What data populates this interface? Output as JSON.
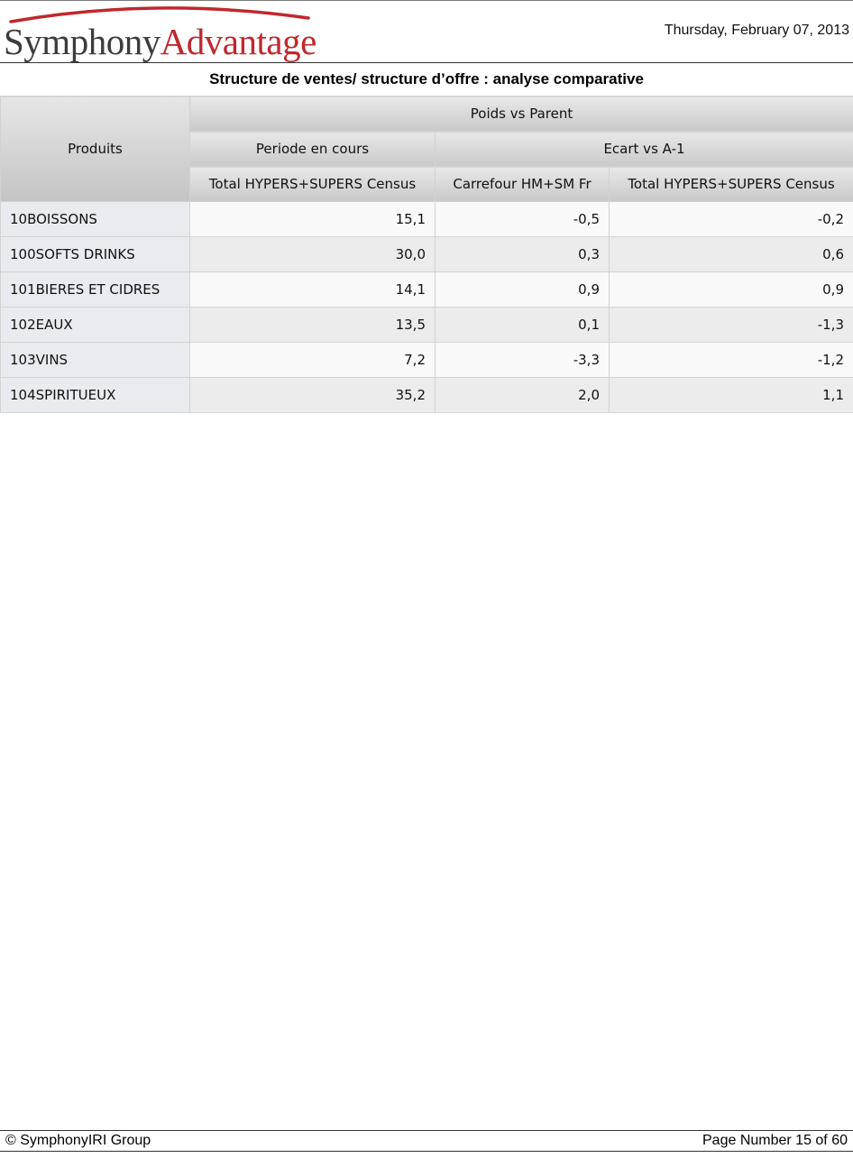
{
  "header": {
    "logo_part1": "Symphony",
    "logo_part2": "Advantage",
    "date": "Thursday, February 07, 2013"
  },
  "title": "Structure de ventes/ structure d’offre : analyse comparative",
  "table": {
    "headers": {
      "produits": "Produits",
      "poids": "Poids vs Parent",
      "periode": "Periode en cours",
      "ecart": "Ecart vs A-1",
      "col1": "Total HYPERS+SUPERS Census",
      "col2": "Carrefour HM+SM Fr",
      "col3": "Total HYPERS+SUPERS Census"
    },
    "rows": [
      {
        "name": "10BOISSONS",
        "v1": "15,1",
        "v2": "-0,5",
        "v3": "-0,2"
      },
      {
        "name": "100SOFTS DRINKS",
        "v1": "30,0",
        "v2": "0,3",
        "v3": "0,6"
      },
      {
        "name": "101BIERES ET CIDRES",
        "v1": "14,1",
        "v2": "0,9",
        "v3": "0,9"
      },
      {
        "name": "102EAUX",
        "v1": "13,5",
        "v2": "0,1",
        "v3": "-1,3"
      },
      {
        "name": "103VINS",
        "v1": "7,2",
        "v2": "-3,3",
        "v3": "-1,2"
      },
      {
        "name": "104SPIRITUEUX",
        "v1": "35,2",
        "v2": "2,0",
        "v3": "1,1"
      }
    ]
  },
  "footer": {
    "copyright": "© SymphonyIRI Group",
    "page": "Page Number 15 of 60"
  },
  "colors": {
    "logo_red": "#c0282d",
    "logo_gray": "#3c3c3c"
  }
}
